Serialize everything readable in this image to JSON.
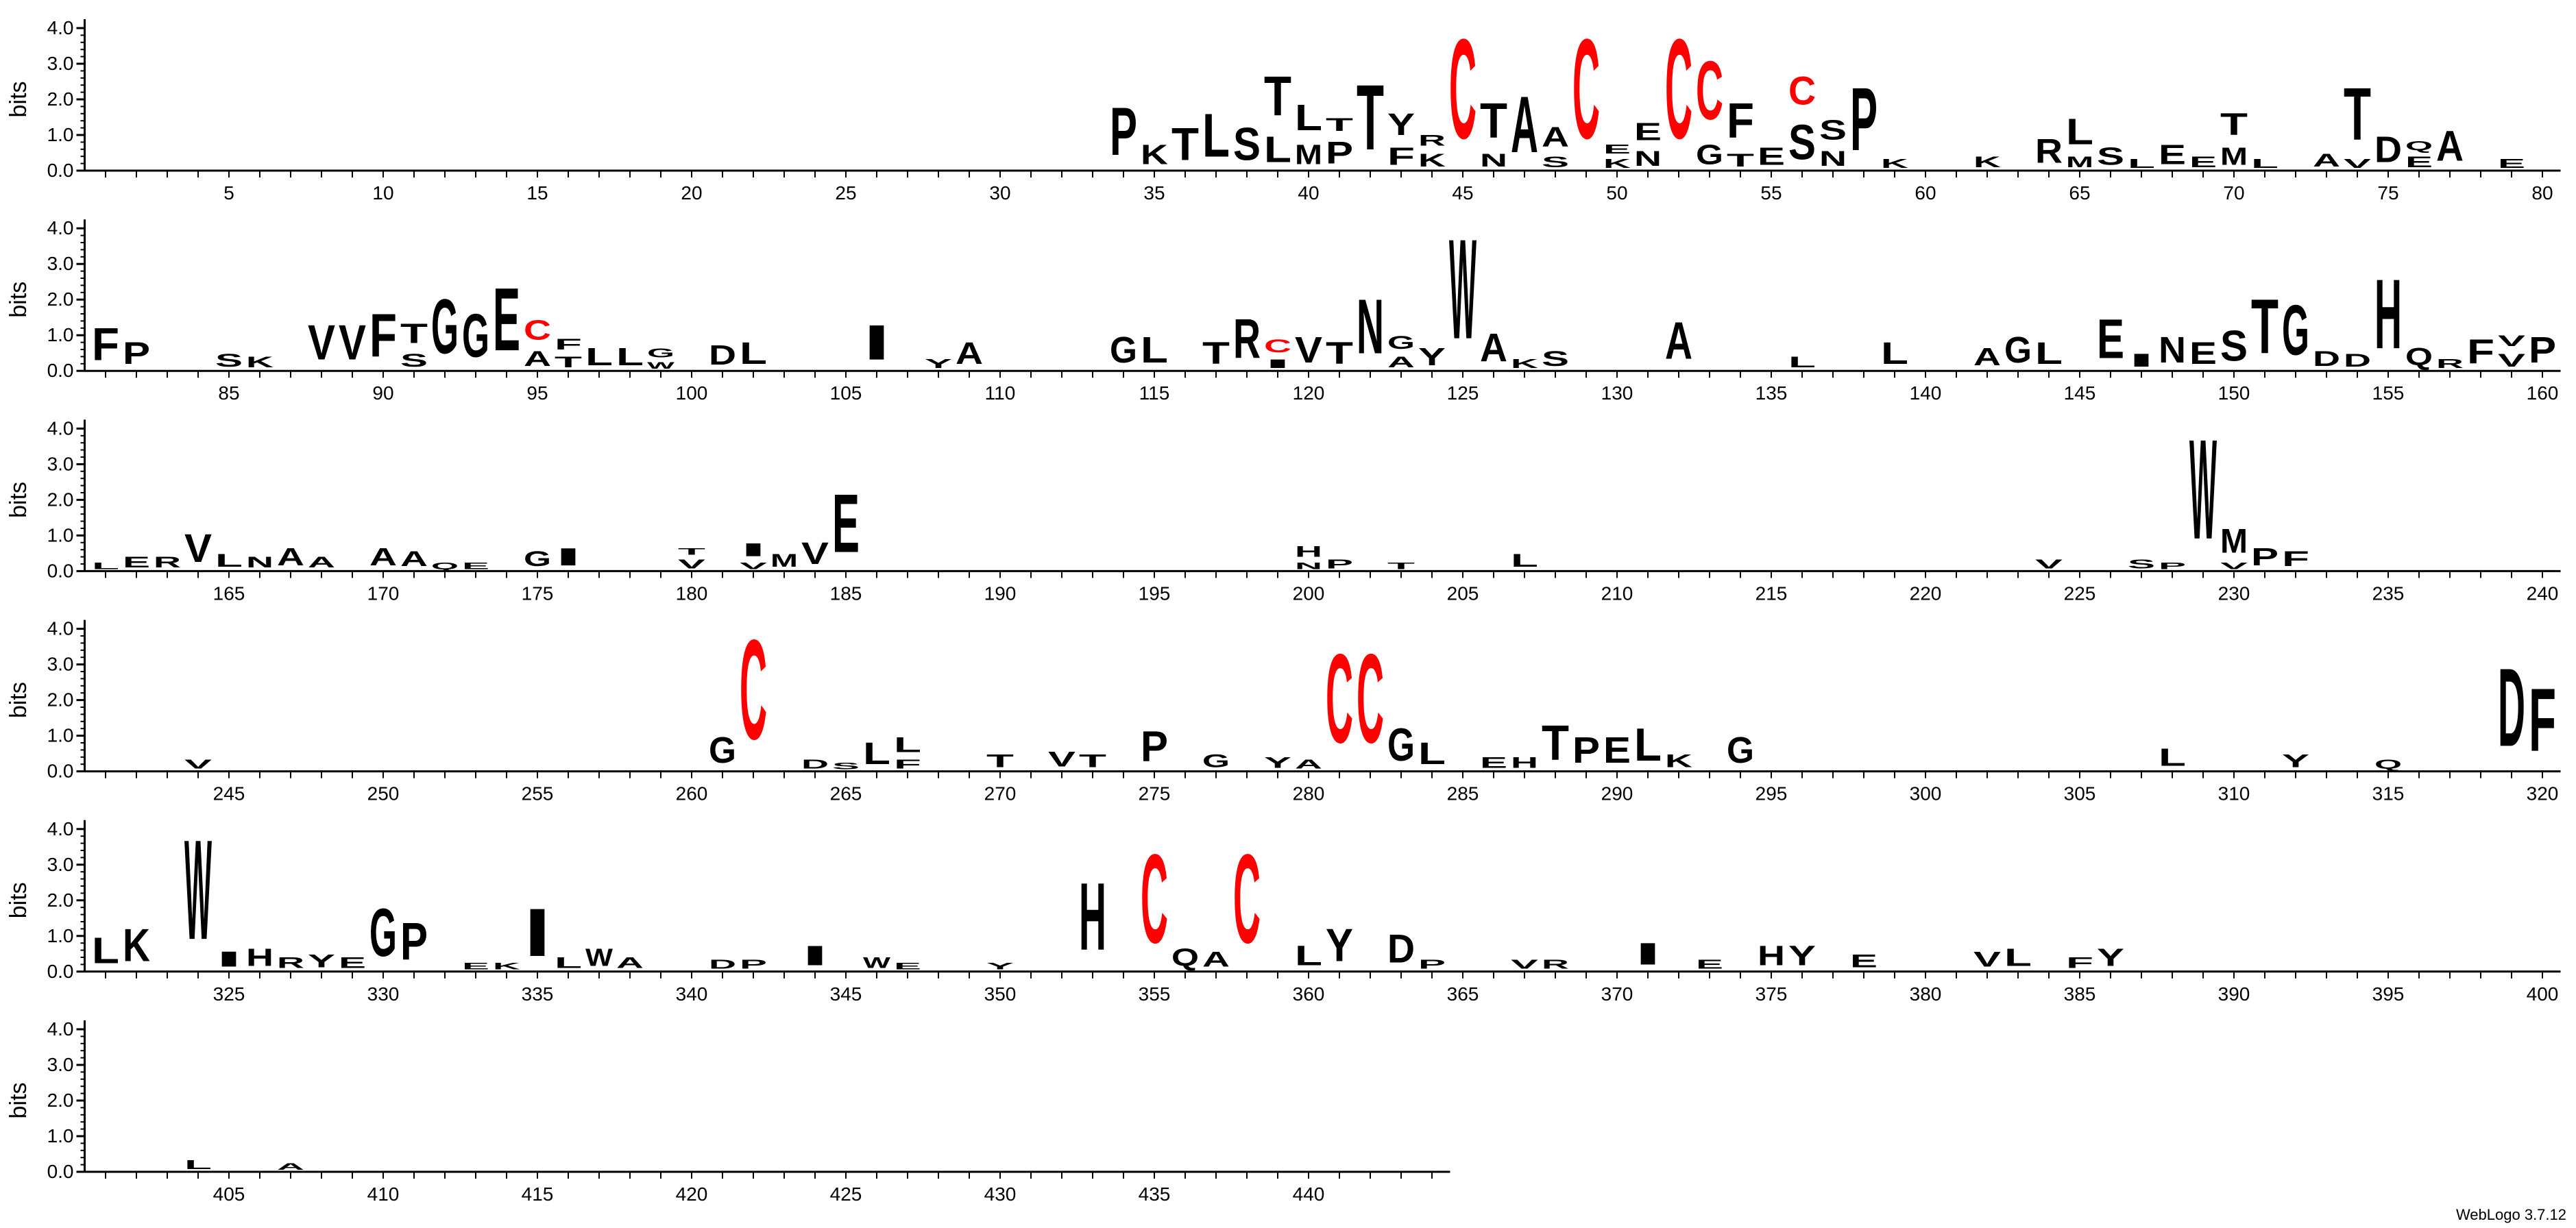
{
  "chart_data": {
    "type": "sequence-logo",
    "ylabel": "bits",
    "ylim": [
      0,
      4.3
    ],
    "y_ticks": [
      "0.0",
      "1.0",
      "2.0",
      "3.0",
      "4.0"
    ],
    "positions_per_row": 80,
    "total_positions": 444,
    "x_tick_step": 5,
    "colors": {
      "C": "#ff0000",
      "default": "#000000",
      "axis": "#000000",
      "errorbar": "#bbbbbb"
    },
    "stacks": [
      [
        34,
        "P",
        2.2
      ],
      [
        35,
        "K",
        0.9
      ],
      [
        36,
        "T",
        1.5
      ],
      [
        37,
        "L",
        2.0
      ],
      [
        38,
        "S",
        1.5
      ],
      [
        39,
        "L",
        1.2
      ],
      [
        39,
        "T",
        1.8
      ],
      [
        40,
        "M",
        0.9
      ],
      [
        40,
        "L",
        1.2
      ],
      [
        41,
        "P",
        1.0
      ],
      [
        41,
        "T",
        0.6
      ],
      [
        42,
        "T",
        3.0
      ],
      [
        43,
        "F",
        0.8
      ],
      [
        43,
        "Y",
        1.0
      ],
      [
        44,
        "K",
        0.6
      ],
      [
        44,
        "R",
        0.5
      ],
      [
        45,
        "C",
        4.6
      ],
      [
        46,
        "N",
        0.6
      ],
      [
        46,
        "T",
        1.6
      ],
      [
        47,
        "A",
        2.6
      ],
      [
        48,
        "S",
        0.5
      ],
      [
        48,
        "A",
        0.9
      ],
      [
        49,
        "C",
        4.6
      ],
      [
        50,
        "K",
        0.4
      ],
      [
        50,
        "E",
        0.4
      ],
      [
        51,
        "N",
        0.7
      ],
      [
        51,
        "E",
        0.8
      ],
      [
        52,
        "C",
        4.6
      ],
      [
        53,
        "G",
        0.9
      ],
      [
        53,
        "C",
        2.7
      ],
      [
        54,
        "T",
        0.6
      ],
      [
        54,
        "F",
        1.6
      ],
      [
        55,
        "E",
        0.8
      ],
      [
        56,
        "S",
        1.6
      ],
      [
        56,
        "C",
        1.3
      ],
      [
        57,
        "N",
        0.7
      ],
      [
        57,
        "S",
        0.9
      ],
      [
        58,
        "P",
        2.9
      ],
      [
        59,
        "K",
        0.4
      ],
      [
        62,
        "K",
        0.5
      ],
      [
        64,
        "R",
        1.1
      ],
      [
        65,
        "M",
        0.5
      ],
      [
        65,
        "L",
        1.2
      ],
      [
        66,
        "S",
        0.8
      ],
      [
        67,
        "L",
        0.4
      ],
      [
        68,
        "E",
        0.9
      ],
      [
        69,
        "E",
        0.5
      ],
      [
        70,
        "M",
        0.8
      ],
      [
        70,
        "T",
        1.0
      ],
      [
        71,
        "L",
        0.4
      ],
      [
        73,
        "A",
        0.6
      ],
      [
        74,
        "V",
        0.4
      ],
      [
        74,
        "T",
        2.4
      ],
      [
        75,
        "D",
        1.2
      ],
      [
        76,
        "E",
        0.5
      ],
      [
        76,
        "Q",
        0.4
      ],
      [
        77,
        "A",
        1.4
      ],
      [
        79,
        "E",
        0.4
      ],
      [
        81,
        "F",
        1.5
      ],
      [
        82,
        "P",
        1.0
      ],
      [
        85,
        "S",
        0.6
      ],
      [
        86,
        "K",
        0.5
      ],
      [
        88,
        "V",
        1.6
      ],
      [
        89,
        "V",
        1.6
      ],
      [
        90,
        "F",
        2.0
      ],
      [
        91,
        "S",
        0.6
      ],
      [
        91,
        "T",
        0.9
      ],
      [
        92,
        "G",
        2.5
      ],
      [
        93,
        "G",
        2.0
      ],
      [
        94,
        "E",
        2.9
      ],
      [
        95,
        "A",
        0.7
      ],
      [
        95,
        "C",
        0.9
      ],
      [
        96,
        "T",
        0.5
      ],
      [
        96,
        "F",
        0.5
      ],
      [
        97,
        "L",
        0.8
      ],
      [
        98,
        "L",
        0.8
      ],
      [
        99,
        "W",
        0.3
      ],
      [
        99,
        "G",
        0.4
      ],
      [
        101,
        "D",
        0.9
      ],
      [
        102,
        "L",
        1.0
      ],
      [
        106,
        "I",
        1.6
      ],
      [
        108,
        "Y",
        0.4
      ],
      [
        109,
        "A",
        1.0
      ],
      [
        114,
        "G",
        1.2
      ],
      [
        115,
        "L",
        1.2
      ],
      [
        117,
        "T",
        1.0
      ],
      [
        118,
        "R",
        1.8
      ],
      [
        119,
        "I",
        0.4
      ],
      [
        119,
        "C",
        0.6
      ],
      [
        120,
        "V",
        1.2
      ],
      [
        121,
        "T",
        1.0
      ],
      [
        122,
        "N",
        2.5
      ],
      [
        123,
        "A",
        0.5
      ],
      [
        123,
        "G",
        0.6
      ],
      [
        124,
        "Y",
        0.8
      ],
      [
        125,
        "W",
        4.6
      ],
      [
        126,
        "A",
        1.3
      ],
      [
        127,
        "K",
        0.4
      ],
      [
        128,
        "S",
        0.7
      ],
      [
        132,
        "A",
        1.7
      ],
      [
        136,
        "L",
        0.5
      ],
      [
        139,
        "L",
        1.0
      ],
      [
        142,
        "A",
        0.8
      ],
      [
        143,
        "G",
        1.2
      ],
      [
        144,
        "L",
        1.0
      ],
      [
        146,
        "E",
        1.8
      ],
      [
        147,
        "I",
        0.6
      ],
      [
        148,
        "N",
        1.2
      ],
      [
        149,
        "E",
        1.0
      ],
      [
        150,
        "S",
        1.4
      ],
      [
        151,
        "T",
        2.5
      ],
      [
        152,
        "G",
        2.3
      ],
      [
        153,
        "D",
        0.7
      ],
      [
        154,
        "D",
        0.6
      ],
      [
        155,
        "H",
        3.2
      ],
      [
        156,
        "Q",
        0.8
      ],
      [
        157,
        "R",
        0.4
      ],
      [
        158,
        "F",
        1.1
      ],
      [
        159,
        "V",
        0.6
      ],
      [
        159,
        "V",
        0.5
      ],
      [
        160,
        "P",
        1.2
      ],
      [
        161,
        "L",
        0.3
      ],
      [
        162,
        "E",
        0.5
      ],
      [
        163,
        "R",
        0.5
      ],
      [
        164,
        "V",
        1.3
      ],
      [
        165,
        "L",
        0.6
      ],
      [
        166,
        "N",
        0.5
      ],
      [
        167,
        "A",
        0.8
      ],
      [
        168,
        "A",
        0.5
      ],
      [
        170,
        "A",
        0.8
      ],
      [
        171,
        "A",
        0.7
      ],
      [
        172,
        "Q",
        0.3
      ],
      [
        173,
        "E",
        0.3
      ],
      [
        175,
        "G",
        0.7
      ],
      [
        176,
        "I",
        0.8
      ],
      [
        180,
        "V",
        0.4
      ],
      [
        180,
        "T",
        0.3
      ],
      [
        182,
        "V",
        0.3
      ],
      [
        182,
        "I",
        0.6
      ],
      [
        183,
        "M",
        0.6
      ],
      [
        184,
        "V",
        1.0
      ],
      [
        185,
        "E",
        2.7
      ],
      [
        200,
        "N",
        0.3
      ],
      [
        200,
        "H",
        0.5
      ],
      [
        201,
        "P",
        0.4
      ],
      [
        203,
        "T",
        0.3
      ],
      [
        207,
        "L",
        0.6
      ],
      [
        224,
        "V",
        0.4
      ],
      [
        227,
        "S",
        0.4
      ],
      [
        228,
        "P",
        0.3
      ],
      [
        229,
        "W",
        4.6
      ],
      [
        230,
        "V",
        0.3
      ],
      [
        230,
        "M",
        1.1
      ],
      [
        231,
        "P",
        0.8
      ],
      [
        232,
        "F",
        0.7
      ],
      [
        244,
        "V",
        0.4
      ],
      [
        261,
        "G",
        1.2
      ],
      [
        262,
        "C",
        4.6
      ],
      [
        264,
        "D",
        0.4
      ],
      [
        265,
        "S",
        0.3
      ],
      [
        266,
        "L",
        1.0
      ],
      [
        267,
        "F",
        0.4
      ],
      [
        267,
        "L",
        0.7
      ],
      [
        270,
        "T",
        0.6
      ],
      [
        272,
        "V",
        0.7
      ],
      [
        273,
        "T",
        0.6
      ],
      [
        275,
        "P",
        1.4
      ],
      [
        277,
        "G",
        0.6
      ],
      [
        279,
        "Y",
        0.5
      ],
      [
        280,
        "A",
        0.4
      ],
      [
        281,
        "C",
        4.1
      ],
      [
        282,
        "C",
        4.1
      ],
      [
        283,
        "G",
        1.5
      ],
      [
        284,
        "L",
        1.0
      ],
      [
        286,
        "E",
        0.5
      ],
      [
        287,
        "H",
        0.5
      ],
      [
        288,
        "T",
        1.6
      ],
      [
        289,
        "P",
        1.2
      ],
      [
        290,
        "E",
        1.2
      ],
      [
        291,
        "L",
        1.5
      ],
      [
        292,
        "K",
        0.6
      ],
      [
        294,
        "G",
        1.2
      ],
      [
        308,
        "L",
        0.8
      ],
      [
        312,
        "Y",
        0.6
      ],
      [
        315,
        "Q",
        0.4
      ],
      [
        319,
        "D",
        3.6
      ],
      [
        320,
        "F",
        2.9
      ],
      [
        321,
        "L",
        1.2
      ],
      [
        322,
        "K",
        1.5
      ],
      [
        324,
        "W",
        4.6
      ],
      [
        325,
        "I",
        0.7
      ],
      [
        326,
        "H",
        0.8
      ],
      [
        327,
        "R",
        0.5
      ],
      [
        328,
        "Y",
        0.6
      ],
      [
        329,
        "E",
        0.5
      ],
      [
        330,
        "G",
        2.2
      ],
      [
        331,
        "P",
        1.7
      ],
      [
        333,
        "E",
        0.3
      ],
      [
        334,
        "K",
        0.3
      ],
      [
        335,
        "I",
        2.2
      ],
      [
        336,
        "L",
        0.5
      ],
      [
        337,
        "W",
        0.8
      ],
      [
        338,
        "A",
        0.5
      ],
      [
        341,
        "D",
        0.4
      ],
      [
        342,
        "P",
        0.4
      ],
      [
        344,
        "I",
        0.9
      ],
      [
        346,
        "W",
        0.5
      ],
      [
        347,
        "E",
        0.3
      ],
      [
        350,
        "Y",
        0.3
      ],
      [
        353,
        "H",
        3.1
      ],
      [
        355,
        "C",
        4.1
      ],
      [
        356,
        "Q",
        0.8
      ],
      [
        357,
        "A",
        0.7
      ],
      [
        358,
        "C",
        4.1
      ],
      [
        360,
        "L",
        0.9
      ],
      [
        361,
        "Y",
        1.5
      ],
      [
        363,
        "D",
        1.3
      ],
      [
        364,
        "P",
        0.4
      ],
      [
        367,
        "V",
        0.4
      ],
      [
        368,
        "R",
        0.4
      ],
      [
        371,
        "I",
        1.0
      ],
      [
        373,
        "E",
        0.4
      ],
      [
        375,
        "H",
        0.9
      ],
      [
        376,
        "Y",
        0.9
      ],
      [
        378,
        "E",
        0.6
      ],
      [
        382,
        "V",
        0.7
      ],
      [
        383,
        "L",
        0.8
      ],
      [
        385,
        "F",
        0.5
      ],
      [
        386,
        "Y",
        0.8
      ],
      [
        404,
        "L",
        0.4
      ],
      [
        407,
        "A",
        0.3
      ]
    ]
  },
  "footer": "WebLogo 3.7.12"
}
